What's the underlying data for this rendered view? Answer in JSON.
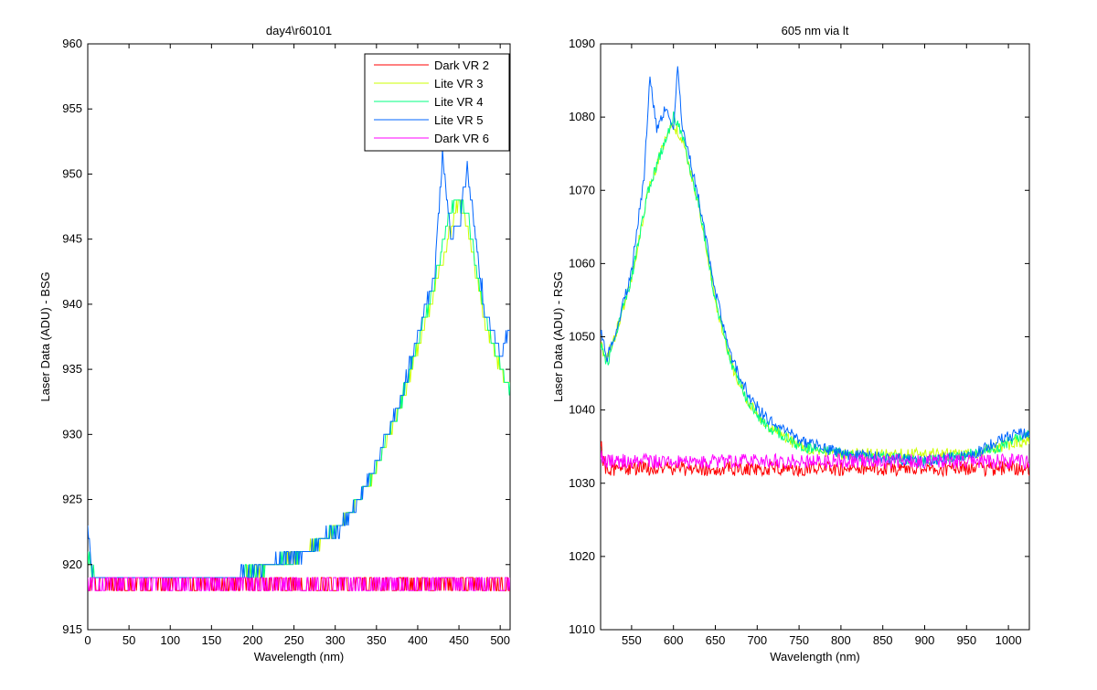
{
  "chart_data": [
    {
      "type": "line",
      "title": "day4\\r60101",
      "xlabel": "Wavelength (nm)",
      "ylabel": "Laser Data (ADU) - BSG",
      "xlim": [
        0,
        512
      ],
      "ylim": [
        915,
        960
      ],
      "xticks": [
        0,
        50,
        100,
        150,
        200,
        250,
        300,
        350,
        400,
        450,
        500
      ],
      "yticks": [
        915,
        920,
        925,
        930,
        935,
        940,
        945,
        950,
        955,
        960
      ],
      "legend": "top-right",
      "series": [
        {
          "name": "Dark VR 2",
          "color": "#ff0000",
          "x": [
            0,
            512
          ],
          "y": [
            918.5,
            918.5
          ],
          "noise": 0.5
        },
        {
          "name": "Lite VR 3",
          "color": "#ccff00",
          "x": [
            0,
            5,
            10,
            50,
            100,
            150,
            180,
            200,
            250,
            275,
            300,
            325,
            350,
            375,
            400,
            420,
            437,
            450,
            460,
            480,
            500,
            512
          ],
          "y": [
            921,
            919.5,
            919,
            919,
            919,
            919,
            919,
            919.5,
            920.5,
            921.5,
            922.5,
            924.5,
            927.5,
            931.5,
            936.5,
            941,
            945,
            948,
            946,
            939,
            935,
            934
          ],
          "noise": 0.4
        },
        {
          "name": "Lite VR 4",
          "color": "#00ff80",
          "x": [
            0,
            5,
            10,
            50,
            100,
            150,
            180,
            200,
            250,
            275,
            300,
            325,
            350,
            375,
            400,
            420,
            430,
            440,
            450,
            460,
            480,
            500,
            512
          ],
          "y": [
            921,
            919.5,
            919,
            919,
            919,
            919,
            919,
            919.5,
            920.5,
            921.5,
            922.5,
            924.5,
            927.5,
            931.5,
            937,
            941.5,
            944.5,
            947,
            948,
            947,
            939.5,
            935,
            933.5
          ],
          "noise": 0.4
        },
        {
          "name": "Lite VR 5",
          "color": "#0066ff",
          "x": [
            0,
            5,
            10,
            50,
            100,
            150,
            180,
            200,
            250,
            275,
            300,
            325,
            350,
            375,
            400,
            420,
            430,
            440,
            450,
            460,
            480,
            500,
            512
          ],
          "y": [
            923,
            919.5,
            919,
            919,
            919,
            919,
            919,
            919.5,
            920.5,
            921.5,
            922.5,
            924.5,
            928,
            932,
            937.5,
            942,
            951.5,
            945,
            946,
            950.5,
            940,
            936,
            938
          ],
          "noise": 0.5
        },
        {
          "name": "Dark VR 6",
          "color": "#ff00ff",
          "x": [
            0,
            512
          ],
          "y": [
            918.5,
            918.5
          ],
          "noise": 0.5
        }
      ]
    },
    {
      "type": "line",
      "title": "605 nm via lt",
      "xlabel": "Wavelength (nm)",
      "ylabel": "Laser Data (ADU) - RSG",
      "xlim": [
        513,
        1025
      ],
      "ylim": [
        1010,
        1090
      ],
      "xticks": [
        550,
        600,
        650,
        700,
        750,
        800,
        850,
        900,
        950,
        1000
      ],
      "yticks": [
        1010,
        1020,
        1030,
        1040,
        1050,
        1060,
        1070,
        1080,
        1090
      ],
      "series": [
        {
          "color": "#ff0000",
          "x": [
            513,
            516,
            520,
            1025
          ],
          "y": [
            1036,
            1033,
            1032,
            1032
          ],
          "noise": 1.0
        },
        {
          "color": "#ccff00",
          "x": [
            513,
            520,
            530,
            550,
            570,
            590,
            600,
            610,
            630,
            650,
            670,
            690,
            710,
            750,
            800,
            900,
            960,
            990,
            1025
          ],
          "y": [
            1049,
            1047,
            1050,
            1058,
            1070,
            1077,
            1079,
            1077,
            1068,
            1055,
            1046,
            1041,
            1038,
            1035,
            1034,
            1034,
            1034,
            1035,
            1036
          ],
          "noise": 0.8
        },
        {
          "color": "#00ff80",
          "x": [
            513,
            520,
            530,
            550,
            570,
            590,
            600,
            610,
            630,
            650,
            670,
            690,
            710,
            750,
            800,
            900,
            960,
            990,
            1025
          ],
          "y": [
            1049,
            1046,
            1050,
            1058,
            1070,
            1077,
            1080,
            1078,
            1068,
            1055,
            1046,
            1041,
            1038,
            1035,
            1034,
            1033,
            1034,
            1035,
            1037
          ],
          "noise": 0.8
        },
        {
          "color": "#0066ff",
          "x": [
            513,
            520,
            530,
            550,
            565,
            572,
            580,
            590,
            600,
            605,
            610,
            630,
            650,
            670,
            690,
            710,
            750,
            800,
            900,
            960,
            990,
            1025
          ],
          "y": [
            1051,
            1047,
            1050,
            1059,
            1072,
            1086,
            1078,
            1081,
            1078,
            1087,
            1079,
            1069,
            1056,
            1047,
            1042,
            1039,
            1036,
            1034,
            1033,
            1034,
            1036,
            1037
          ],
          "noise": 0.8
        },
        {
          "color": "#ff00ff",
          "x": [
            513,
            520,
            1025
          ],
          "y": [
            1034,
            1033,
            1033
          ],
          "noise": 1.0
        }
      ]
    }
  ]
}
